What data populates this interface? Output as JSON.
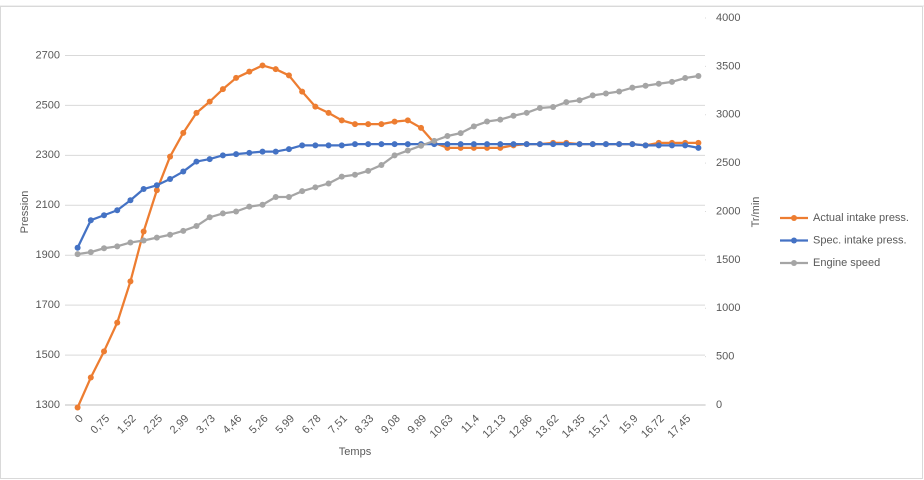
{
  "chart_data": {
    "type": "line",
    "x_label": "Temps",
    "y_label": "Pression",
    "y2_label": "Tr/min",
    "categories": [
      "0",
      null,
      "0,75",
      null,
      "1,52",
      null,
      "2,25",
      null,
      "2,99",
      null,
      "3,73",
      null,
      "4,46",
      null,
      "5,26",
      null,
      "5,99",
      null,
      "6,78",
      null,
      "7,51",
      null,
      "8,33",
      null,
      "9,08",
      null,
      "9,89",
      null,
      "10,63",
      null,
      "11,4",
      null,
      "12,13",
      null,
      "12,86",
      null,
      "13,62",
      null,
      "14,35",
      null,
      "15,17",
      null,
      "15,9",
      null,
      "16,72",
      null,
      "17,45",
      null
    ],
    "series": [
      {
        "name": "Actual intake press.",
        "color": "#ed7d31",
        "axis": "y",
        "values": [
          1290,
          1410,
          1515,
          1630,
          1795,
          1995,
          2160,
          2295,
          2390,
          2470,
          2515,
          2565,
          2610,
          2635,
          2660,
          2645,
          2620,
          2555,
          2495,
          2470,
          2440,
          2425,
          2425,
          2425,
          2435,
          2440,
          2410,
          2350,
          2330,
          2330,
          2330,
          2330,
          2330,
          2340,
          2345,
          2345,
          2350,
          2350,
          2345,
          2345,
          2345,
          2345,
          2345,
          2340,
          2350,
          2350,
          2350,
          2350
        ]
      },
      {
        "name": "Spec. intake press.",
        "color": "#4472c4",
        "axis": "y",
        "values": [
          1930,
          2040,
          2060,
          2080,
          2120,
          2165,
          2180,
          2205,
          2235,
          2275,
          2285,
          2300,
          2305,
          2310,
          2315,
          2315,
          2325,
          2340,
          2340,
          2340,
          2340,
          2345,
          2345,
          2345,
          2345,
          2345,
          2345,
          2345,
          2345,
          2345,
          2345,
          2345,
          2345,
          2345,
          2345,
          2345,
          2345,
          2345,
          2345,
          2345,
          2345,
          2345,
          2345,
          2340,
          2340,
          2340,
          2340,
          2330
        ]
      },
      {
        "name": "Engine speed",
        "color": "#a5a5a5",
        "axis": "y2",
        "values": [
          1560,
          1580,
          1620,
          1640,
          1680,
          1700,
          1730,
          1760,
          1800,
          1850,
          1940,
          1980,
          2000,
          2050,
          2070,
          2150,
          2150,
          2210,
          2250,
          2290,
          2360,
          2380,
          2420,
          2480,
          2580,
          2630,
          2680,
          2730,
          2780,
          2810,
          2880,
          2930,
          2950,
          2990,
          3020,
          3070,
          3080,
          3130,
          3150,
          3200,
          3220,
          3240,
          3280,
          3300,
          3320,
          3340,
          3380,
          3400
        ]
      }
    ],
    "ylim": [
      1300,
      2850
    ],
    "yticks": [
      1300,
      1500,
      1700,
      1900,
      2100,
      2300,
      2500,
      2700
    ],
    "y2lim": [
      0,
      4000
    ],
    "y2ticks": [
      0,
      500,
      1000,
      1500,
      2000,
      2500,
      3000,
      3500,
      4000
    ],
    "grid": true,
    "legend": "right"
  }
}
